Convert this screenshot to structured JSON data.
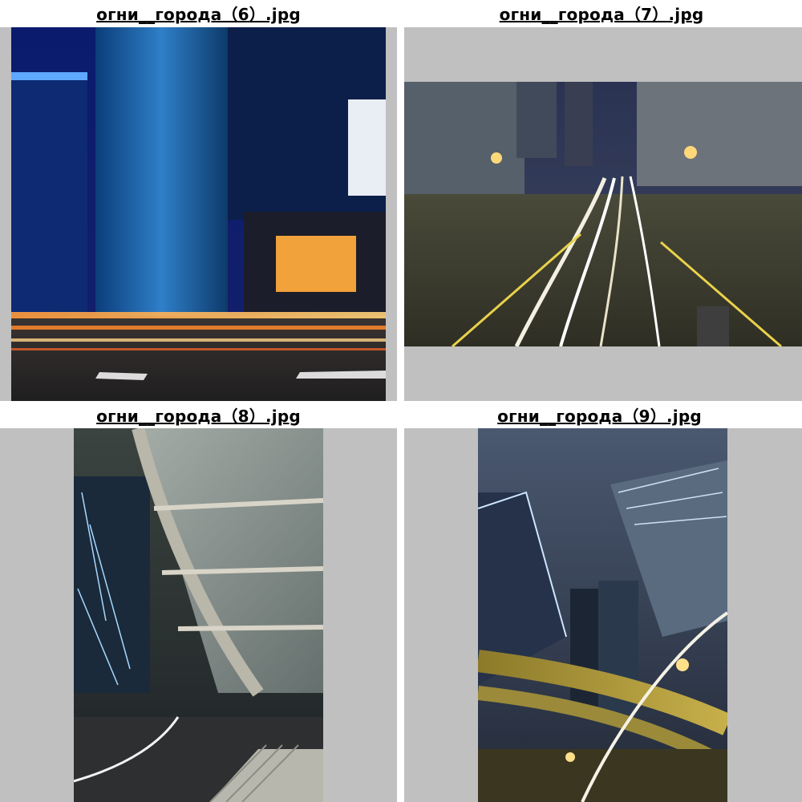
{
  "thumbnails": [
    {
      "filename": "огни__города（6）.jpg",
      "subject": "night-skyscrapers-light-trails"
    },
    {
      "filename": "огни__города（7）.jpg",
      "subject": "curved-highway-light-trails"
    },
    {
      "filename": "огни__города（8）.jpg",
      "subject": "covered-walkway-at-night"
    },
    {
      "filename": "огни__города（9）.jpg",
      "subject": "looking-up-at-towers-and-overpass"
    }
  ],
  "colors": {
    "frame_background": "#c0c0c0",
    "page_background": "#ffffff",
    "caption_text": "#000000"
  }
}
